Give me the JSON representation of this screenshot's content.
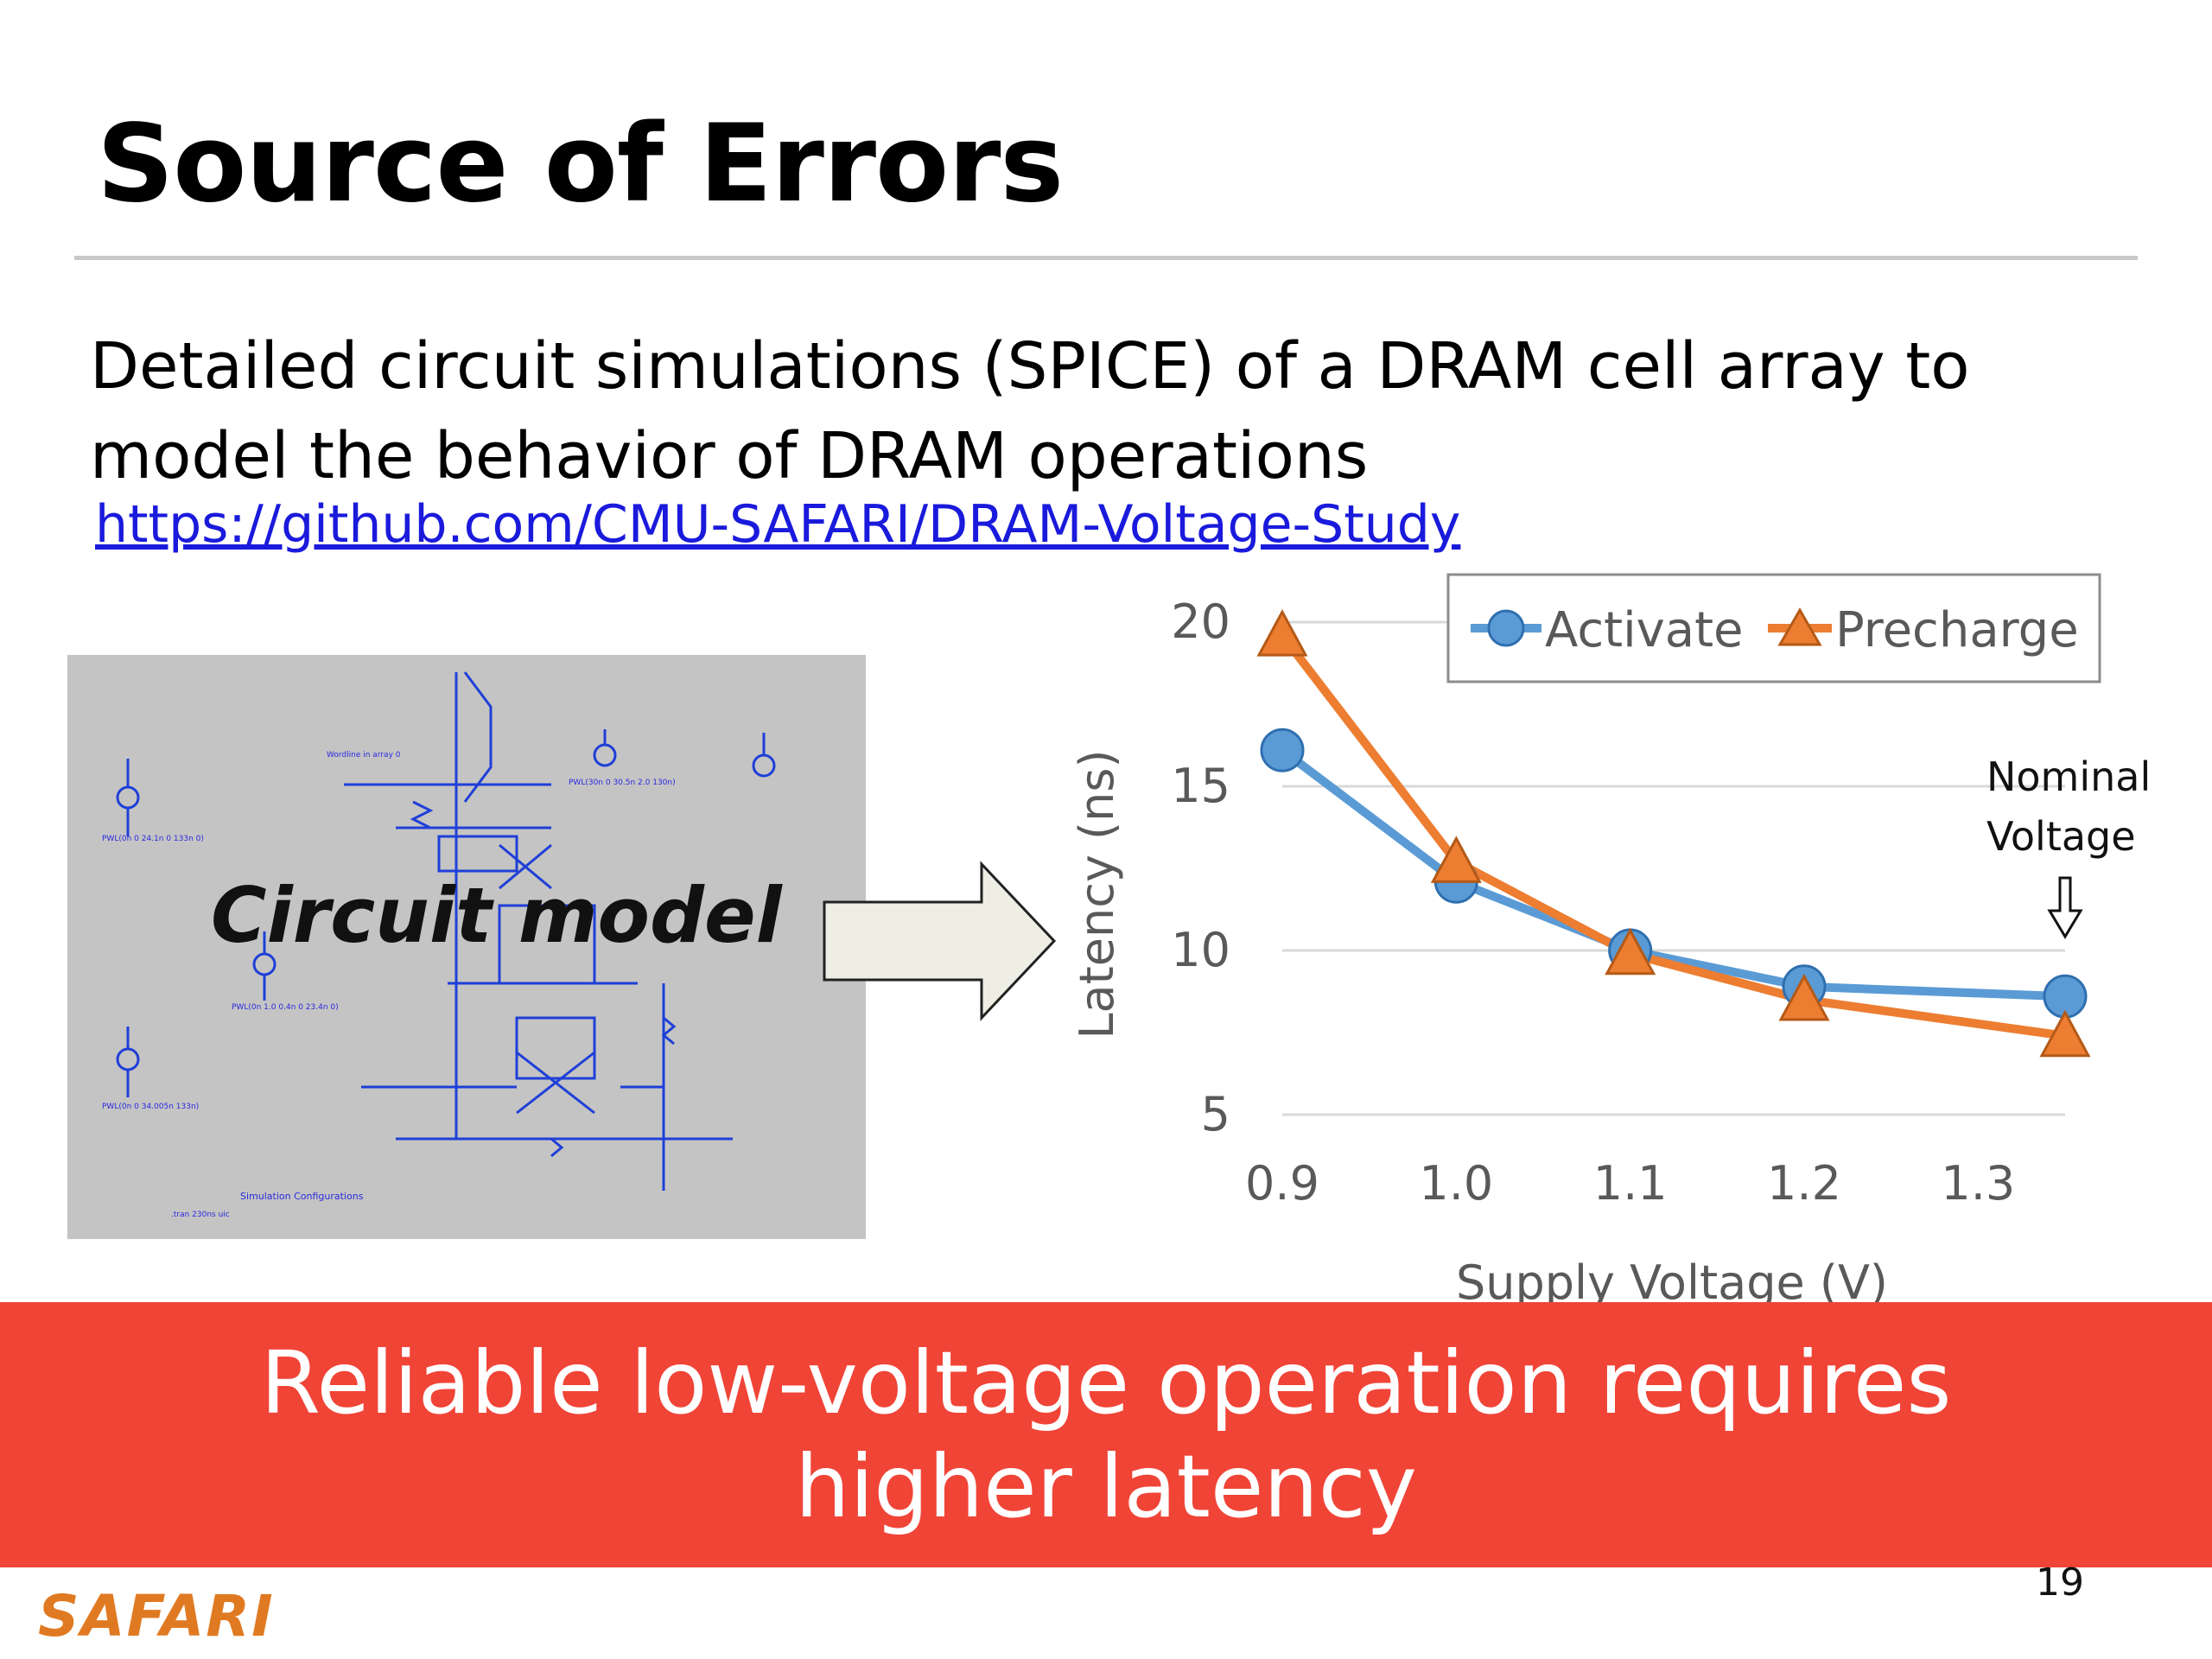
{
  "slide": {
    "title": "Source of Errors",
    "body": "Detailed circuit simulations (SPICE) of a DRAM cell array to model the behavior of DRAM operations",
    "link": "https://github.com/CMU-SAFARI/DRAM-Voltage-Study",
    "circuit_label": "Circuit model",
    "banner": "Reliable low-voltage operation requires higher latency",
    "page_number": "19",
    "logo": "SAFARI"
  },
  "annotation": {
    "line1": "Nominal",
    "line2": "Voltage"
  },
  "colors": {
    "banner": "#f04437",
    "activate": "#5b9bd5",
    "precharge": "#ed7d31",
    "logo": "#e07a22",
    "link": "#1a1adc"
  },
  "chart_data": {
    "type": "line",
    "xlabel": "Supply Voltage (V)",
    "ylabel": "Latency (ns)",
    "x": [
      0.9,
      1.0,
      1.1,
      1.2,
      1.35
    ],
    "x_ticks": [
      "0.9",
      "1.0",
      "1.1",
      "1.2",
      "1.3"
    ],
    "y_ticks": [
      "5",
      "10",
      "15",
      "20"
    ],
    "xlim": [
      0.9,
      1.35
    ],
    "ylim": [
      5,
      20
    ],
    "grid": true,
    "legend_position": "top-right",
    "series": [
      {
        "name": "Activate",
        "marker": "circle",
        "values": [
          16.1,
          12.1,
          10.0,
          8.9,
          8.6
        ]
      },
      {
        "name": "Precharge",
        "marker": "triangle",
        "values": [
          19.6,
          12.7,
          9.9,
          8.5,
          7.4
        ]
      }
    ]
  }
}
